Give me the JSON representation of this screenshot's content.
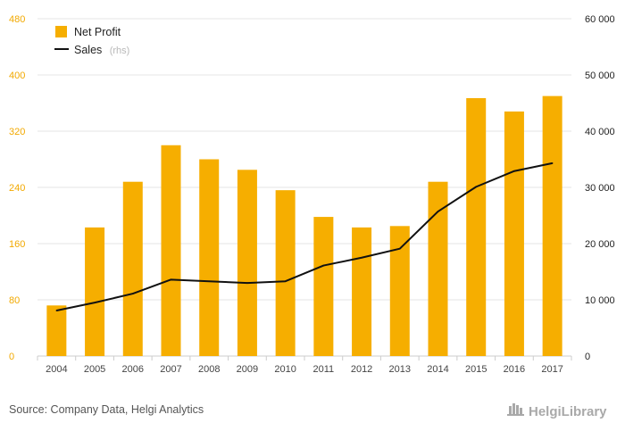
{
  "colors": {
    "bar": "#f6ae00",
    "line": "#111111",
    "left_axis_text": "#f2a900",
    "grid": "#e6e6e6",
    "logo": "#a9a9a9"
  },
  "chart_data": {
    "type": "bar",
    "categories": [
      "2004",
      "2005",
      "2006",
      "2007",
      "2008",
      "2009",
      "2010",
      "2011",
      "2012",
      "2013",
      "2014",
      "2015",
      "2016",
      "2017"
    ],
    "series": [
      {
        "name": "Net Profit",
        "type": "bar",
        "axis": "left",
        "values": [
          72,
          183,
          248,
          300,
          280,
          265,
          236,
          198,
          183,
          185,
          248,
          367,
          348,
          370
        ]
      },
      {
        "name": "Sales",
        "name_suffix": "(rhs)",
        "type": "line",
        "axis": "right",
        "values": [
          8100,
          9500,
          11100,
          13600,
          13300,
          13000,
          13300,
          16100,
          17500,
          19100,
          25700,
          30100,
          32900,
          34300
        ]
      }
    ],
    "left_axis": {
      "ylim": [
        0,
        480
      ],
      "ticks": [
        "0",
        "80",
        "160",
        "240",
        "320",
        "400",
        "480"
      ]
    },
    "right_axis": {
      "ylim": [
        0,
        60000
      ],
      "ticks": [
        "0",
        "10 000",
        "20 000",
        "30 000",
        "40 000",
        "50 000",
        "60 000"
      ]
    },
    "legend_position": "top-left",
    "grid": true
  },
  "footer": {
    "source": "Source: Company Data, Helgi Analytics",
    "logo_text": "HelgiLibrary"
  }
}
